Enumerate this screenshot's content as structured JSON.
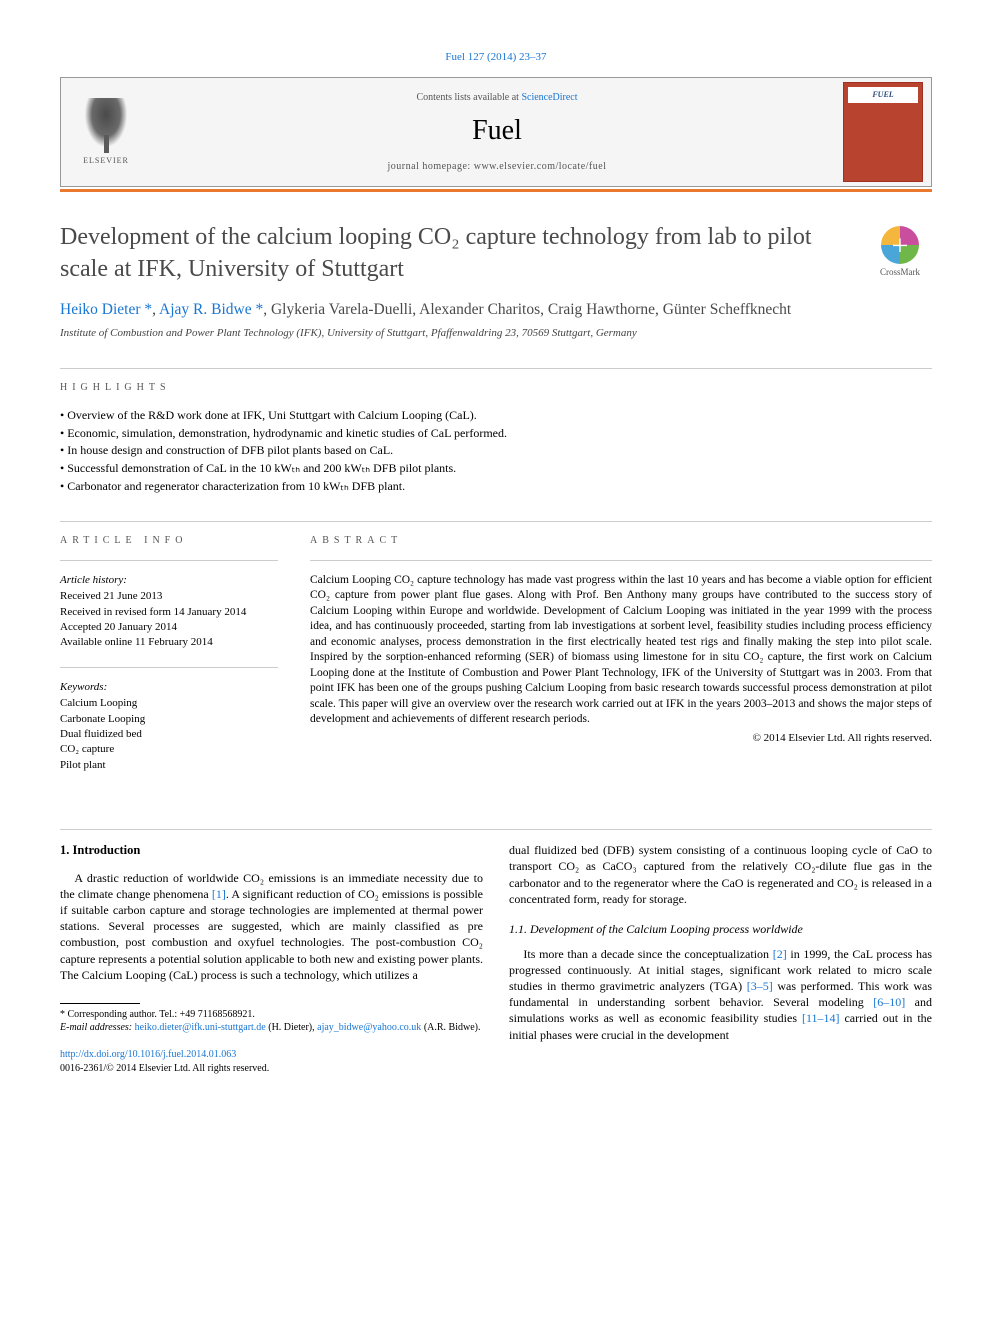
{
  "citation": "Fuel 127 (2014) 23–37",
  "header": {
    "contents_prefix": "Contents lists available at ",
    "contents_link": "ScienceDirect",
    "journal_name": "Fuel",
    "homepage_prefix": "journal homepage: ",
    "homepage_url": "www.elsevier.com/locate/fuel",
    "publisher_label": "ELSEVIER",
    "cover_label": "FUEL"
  },
  "title": "Development of the calcium looping CO₂ capture technology from lab to pilot scale at IFK, University of Stuttgart",
  "crossmark_label": "CrossMark",
  "authors_html": "Heiko Dieter *, Ajay R. Bidwe *, Glykeria Varela-Duelli, Alexander Charitos, Craig Hawthorne, Günter Scheffknecht",
  "author_parts": {
    "a1": "Heiko Dieter",
    "star1": " *",
    "sep1": ", ",
    "a2": "Ajay R. Bidwe",
    "star2": " *",
    "rest": ", Glykeria Varela-Duelli, Alexander Charitos, Craig Hawthorne, Günter Scheffknecht"
  },
  "affiliation": "Institute of Combustion and Power Plant Technology (IFK), University of Stuttgart, Pfaffenwaldring 23, 70569 Stuttgart, Germany",
  "labels": {
    "highlights": "HIGHLIGHTS",
    "article_info": "ARTICLE INFO",
    "abstract": "ABSTRACT"
  },
  "highlights": [
    "Overview of the R&D work done at IFK, Uni Stuttgart with Calcium Looping (CaL).",
    "Economic, simulation, demonstration, hydrodynamic and kinetic studies of CaL performed.",
    "In house design and construction of DFB pilot plants based on CaL.",
    "Successful demonstration of CaL in the 10 kWₜₕ and 200 kWₜₕ DFB pilot plants.",
    "Carbonator and regenerator characterization from 10 kWₜₕ DFB plant."
  ],
  "article_info": {
    "history_label": "Article history:",
    "history": [
      "Received 21 June 2013",
      "Received in revised form 14 January 2014",
      "Accepted 20 January 2014",
      "Available online 11 February 2014"
    ],
    "keywords_label": "Keywords:",
    "keywords": [
      "Calcium Looping",
      "Carbonate Looping",
      "Dual fluidized bed",
      "CO₂ capture",
      "Pilot plant"
    ]
  },
  "abstract": "Calcium Looping CO₂ capture technology has made vast progress within the last 10 years and has become a viable option for efficient CO₂ capture from power plant flue gases. Along with Prof. Ben Anthony many groups have contributed to the success story of Calcium Looping within Europe and worldwide. Development of Calcium Looping was initiated in the year 1999 with the process idea, and has continuously proceeded, starting from lab investigations at sorbent level, feasibility studies including process efficiency and economic analyses, process demonstration in the first electrically heated test rigs and finally making the step into pilot scale. Inspired by the sorption-enhanced reforming (SER) of biomass using limestone for in situ CO₂ capture, the first work on Calcium Looping done at the Institute of Combustion and Power Plant Technology, IFK of the University of Stuttgart was in 2003. From that point IFK has been one of the groups pushing Calcium Looping from basic research towards successful process demonstration at pilot scale. This paper will give an overview over the research work carried out at IFK in the years 2003–2013 and shows the major steps of development and achievements of different research periods.",
  "copyright": "© 2014 Elsevier Ltd. All rights reserved.",
  "body": {
    "intro_heading": "1. Introduction",
    "intro_p1_a": "A drastic reduction of worldwide CO₂ emissions is an immediate necessity due to the climate change phenomena ",
    "intro_ref1": "[1]",
    "intro_p1_b": ". A significant reduction of CO₂ emissions is possible if suitable carbon capture and storage technologies are implemented at thermal power stations. Several processes are suggested, which are mainly classified as pre combustion, post combustion and oxyfuel technologies. The post-combustion CO₂ capture represents a potential solution applicable to both new and existing power plants. The Calcium Looping (CaL) process is such a technology, which utilizes a",
    "col2_p1": "dual fluidized bed (DFB) system consisting of a continuous looping cycle of CaO to transport CO₂ as CaCO₃ captured from the relatively CO₂-dilute flue gas in the carbonator and to the regenerator where the CaO is regenerated and CO₂ is released in a concentrated form, ready for storage.",
    "sub_heading": "1.1. Development of the Calcium Looping process worldwide",
    "col2_p2_a": "Its more than a decade since the conceptualization ",
    "ref2": "[2]",
    "col2_p2_b": " in 1999, the CaL process has progressed continuously. At initial stages, significant work related to micro scale studies in thermo gravimetric analyzers (TGA) ",
    "ref3_5": "[3–5]",
    "col2_p2_c": " was performed. This work was fundamental in understanding sorbent behavior. Several modeling ",
    "ref6_10": "[6–10]",
    "col2_p2_d": " and simulations works as well as economic feasibility studies ",
    "ref11_14": "[11–14]",
    "col2_p2_e": " carried out in the initial phases were crucial in the development"
  },
  "footnote": {
    "corresponding": "* Corresponding author. Tel.: +49 71168568921.",
    "email_label": "E-mail addresses: ",
    "email1": "heiko.dieter@ifk.uni-stuttgart.de",
    "email1_who": " (H. Dieter), ",
    "email2": "ajay_bidwe@yahoo.co.uk",
    "email2_who": " (A.R. Bidwe)."
  },
  "doi": {
    "url": "http://dx.doi.org/10.1016/j.fuel.2014.01.063",
    "issn_line": "0016-2361/© 2014 Elsevier Ltd. All rights reserved."
  },
  "colors": {
    "link": "#1976d2",
    "accent_bar": "#e8792f",
    "cover_bg": "#b8442f",
    "text_muted": "#555",
    "title_color": "#4a4a4a"
  }
}
